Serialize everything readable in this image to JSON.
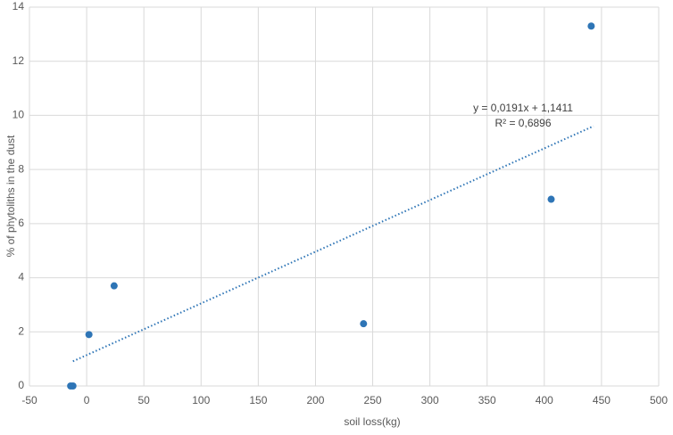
{
  "chart_data": {
    "type": "scatter",
    "x_label": "soil loss(kg)",
    "y_label": "% of phytoliths in the dust",
    "series": [
      {
        "color": "#2e75b6",
        "x": [
          -14,
          -12,
          2,
          24,
          242,
          406,
          441
        ],
        "values": [
          0,
          0,
          1.9,
          3.7,
          2.3,
          6.9,
          13.3
        ]
      }
    ],
    "trendline": {
      "equation": "y = 0,0191x + 1,1411",
      "r2_label": "R² = 0,6896",
      "slope": 0.0191,
      "intercept": 1.1411,
      "x": [
        -12,
        443
      ],
      "color": "#2e75b6"
    },
    "xlim": [
      -50,
      500
    ],
    "xticks": [
      -50,
      0,
      50,
      100,
      150,
      200,
      250,
      300,
      350,
      400,
      450,
      500
    ],
    "ylim": [
      0,
      14
    ],
    "yticks": [
      0,
      2,
      4,
      6,
      8,
      10,
      12,
      14
    ],
    "grid": true
  }
}
